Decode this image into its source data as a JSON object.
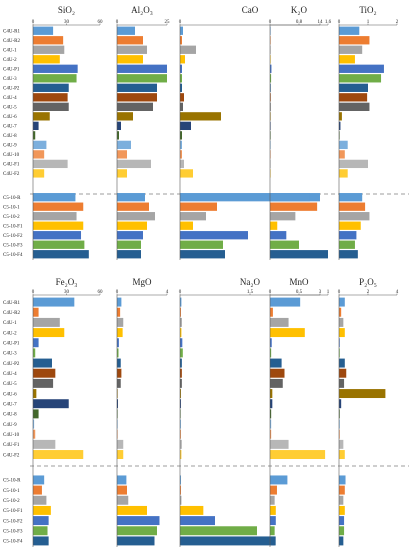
{
  "chart_data": [
    {
      "type": "bar",
      "orientation": "horizontal",
      "title": "SiO₂",
      "xlim": [
        0,
        60
      ],
      "xticks": [
        "0",
        "30",
        "60"
      ],
      "categories": [
        "C4U-R1",
        "C4U-R2",
        "C4U-1",
        "C4U-2",
        "C4U-P1",
        "C4U-3",
        "C4U-P2",
        "C4U-4",
        "C4U-5",
        "C4U-6",
        "C4U-7",
        "C4U-8",
        "C4U-9",
        "C4U-10",
        "C4U-F1",
        "C4U-F2",
        "C5-10-R",
        "C5-10-1",
        "C5-10-2",
        "C5-10-F1",
        "C5-10-F2",
        "C5-10-F3",
        "C5-10-F4"
      ],
      "values": [
        18,
        27,
        28,
        24,
        40,
        39,
        32,
        31,
        32,
        15,
        5,
        2,
        12,
        10,
        31,
        10,
        38,
        45,
        39,
        45,
        43,
        46,
        50
      ]
    },
    {
      "type": "bar",
      "orientation": "horizontal",
      "title": "Al₂O₃",
      "xlim": [
        0,
        25
      ],
      "xticks": [
        "0",
        "25"
      ],
      "categories": [
        "C4U-R1",
        "C4U-R2",
        "C4U-1",
        "C4U-2",
        "C4U-P1",
        "C4U-3",
        "C4U-P2",
        "C4U-4",
        "C4U-5",
        "C4U-6",
        "C4U-7",
        "C4U-8",
        "C4U-9",
        "C4U-10",
        "C4U-F1",
        "C4U-F2",
        "C5-10-R",
        "C5-10-1",
        "C5-10-2",
        "C5-10-F1",
        "C5-10-F2",
        "C5-10-F3",
        "C5-10-F4"
      ],
      "values": [
        9,
        13,
        15,
        13,
        25,
        26,
        20,
        20,
        18,
        8,
        2,
        1,
        7,
        5,
        17,
        5,
        14,
        16,
        19,
        15,
        13,
        12,
        12
      ]
    },
    {
      "type": "bar",
      "orientation": "horizontal",
      "title": "CaO",
      "xlim": [
        0,
        14
      ],
      "xticks": [
        "0",
        "14"
      ],
      "categories": [
        "C4U-R1",
        "C4U-R2",
        "C4U-1",
        "C4U-2",
        "C4U-P1",
        "C4U-3",
        "C4U-P2",
        "C4U-4",
        "C4U-5",
        "C4U-6",
        "C4U-7",
        "C4U-8",
        "C4U-9",
        "C4U-10",
        "C4U-F1",
        "C4U-F2",
        "C5-10-R",
        "C5-10-1",
        "C5-10-2",
        "C5-10-F1",
        "C5-10-F2",
        "C5-10-F3",
        "C5-10-F4"
      ],
      "values": [
        0.3,
        0.2,
        1.6,
        0.5,
        0.2,
        0.2,
        0.2,
        0.4,
        0.3,
        4.1,
        1.1,
        0.2,
        0.2,
        0.2,
        0.4,
        1.3,
        14,
        3.7,
        2.6,
        1.3,
        6.8,
        4.3,
        4.5
      ]
    },
    {
      "type": "bar",
      "orientation": "horizontal",
      "title": "K₂O",
      "xlim": [
        0,
        1.6
      ],
      "xticks": [
        "0",
        "0.8",
        "1.6"
      ],
      "categories": [
        "C4U-R1",
        "C4U-R2",
        "C4U-1",
        "C4U-2",
        "C4U-P1",
        "C4U-3",
        "C4U-P2",
        "C4U-4",
        "C4U-5",
        "C4U-6",
        "C4U-7",
        "C4U-8",
        "C4U-9",
        "C4U-10",
        "C4U-F1",
        "C4U-F2",
        "C5-10-R",
        "C5-10-1",
        "C5-10-2",
        "C5-10-F1",
        "C5-10-F2",
        "C5-10-F3",
        "C5-10-F4"
      ],
      "values": [
        0,
        0,
        0,
        0,
        0.04,
        0.03,
        0.02,
        0.02,
        0.02,
        0.01,
        0,
        0,
        0.01,
        0,
        0,
        0,
        1.1,
        1.3,
        0.7,
        0.2,
        0.45,
        0.8,
        1.6
      ]
    },
    {
      "type": "bar",
      "orientation": "horizontal",
      "title": "TiO₂",
      "xlim": [
        0,
        2
      ],
      "xticks": [
        "0",
        "1",
        "2"
      ],
      "categories": [
        "C4U-R1",
        "C4U-R2",
        "C4U-1",
        "C4U-2",
        "C4U-P1",
        "C4U-3",
        "C4U-P2",
        "C4U-4",
        "C4U-5",
        "C4U-6",
        "C4U-7",
        "C4U-8",
        "C4U-9",
        "C4U-10",
        "C4U-F1",
        "C4U-F2",
        "C5-10-R",
        "C5-10-1",
        "C5-10-2",
        "C5-10-F1",
        "C5-10-F2",
        "C5-10-F3",
        "C5-10-F4"
      ],
      "values": [
        0.7,
        1.05,
        0.8,
        0.55,
        1.55,
        1.45,
        1.0,
        0.97,
        1.05,
        0.1,
        0.05,
        0.02,
        0.3,
        0.2,
        1.0,
        0.3,
        0.8,
        0.9,
        1.05,
        0.75,
        0.6,
        0.55,
        0.65
      ]
    },
    {
      "type": "bar",
      "orientation": "horizontal",
      "title": "Fe₂O₃",
      "xlim": [
        0,
        60
      ],
      "xticks": [
        "0",
        "30",
        "60"
      ],
      "categories": [
        "C4U-R1",
        "C4U-R2",
        "C4U-1",
        "C4U-2",
        "C4U-P1",
        "C4U-3",
        "C4U-P2",
        "C4U-4",
        "C4U-5",
        "C4U-6",
        "C4U-7",
        "C4U-8",
        "C4U-9",
        "C4U-10",
        "C4U-F1",
        "C4U-F2",
        "C5-10-R",
        "C5-10-1",
        "C5-10-2",
        "C5-10-F1",
        "C5-10-F2",
        "C5-10-F3",
        "C5-10-F4"
      ],
      "values": [
        37,
        5,
        24,
        28,
        5,
        2,
        17,
        20,
        18,
        3,
        32,
        5,
        1,
        2,
        20,
        45,
        10,
        8,
        12,
        16,
        14,
        13,
        14
      ]
    },
    {
      "type": "bar",
      "orientation": "horizontal",
      "title": "MgO",
      "xlim": [
        0,
        4
      ],
      "xticks": [
        "0",
        "4"
      ],
      "categories": [
        "C4U-R1",
        "C4U-R2",
        "C4U-1",
        "C4U-2",
        "C4U-P1",
        "C4U-3",
        "C4U-P2",
        "C4U-4",
        "C4U-5",
        "C4U-6",
        "C4U-7",
        "C4U-8",
        "C4U-9",
        "C4U-10",
        "C4U-F1",
        "C4U-F2",
        "C5-10-R",
        "C5-10-1",
        "C5-10-2",
        "C5-10-F1",
        "C5-10-F2",
        "C5-10-F3",
        "C5-10-F4"
      ],
      "values": [
        0.35,
        0.25,
        0.5,
        0.45,
        0.15,
        0.12,
        0.3,
        0.35,
        0.3,
        0.05,
        0.08,
        0.03,
        0.05,
        0.04,
        0.5,
        0.5,
        0.75,
        0.8,
        0.9,
        2.4,
        3.4,
        3.2,
        3.0
      ]
    },
    {
      "type": "bar",
      "orientation": "horizontal",
      "title": "Na₂O",
      "xlim": [
        0,
        3
      ],
      "xticks": [
        "0",
        "1.5",
        "3"
      ],
      "categories": [
        "C4U-R1",
        "C4U-R2",
        "C4U-1",
        "C4U-2",
        "C4U-P1",
        "C4U-3",
        "C4U-P2",
        "C4U-4",
        "C4U-5",
        "C4U-6",
        "C4U-7",
        "C4U-8",
        "C4U-9",
        "C4U-10",
        "C4U-F1",
        "C4U-F2",
        "C5-10-R",
        "C5-10-1",
        "C5-10-2",
        "C5-10-F1",
        "C5-10-F2",
        "C5-10-F3",
        "C5-10-F4"
      ],
      "values": [
        0.03,
        0.02,
        0.04,
        0.03,
        0.05,
        0.06,
        0.04,
        0.04,
        0.04,
        0.02,
        0.02,
        0.01,
        0.02,
        0.02,
        0.04,
        0.03,
        0.02,
        0.02,
        0.03,
        0.5,
        0.75,
        1.65,
        2.05
      ]
    },
    {
      "type": "bar",
      "orientation": "horizontal",
      "title": "MnO",
      "xlim": [
        0,
        1
      ],
      "xticks": [
        "0",
        "0.5",
        "1"
      ],
      "categories": [
        "C4U-R1",
        "C4U-R2",
        "C4U-1",
        "C4U-2",
        "C4U-P1",
        "C4U-3",
        "C4U-P2",
        "C4U-4",
        "C4U-5",
        "C4U-6",
        "C4U-7",
        "C4U-8",
        "C4U-9",
        "C4U-10",
        "C4U-F1",
        "C4U-F2",
        "C5-10-R",
        "C5-10-1",
        "C5-10-2",
        "C5-10-F1",
        "C5-10-F2",
        "C5-10-F3",
        "C5-10-F4"
      ],
      "values": [
        0.52,
        0.05,
        0.32,
        0.6,
        0.03,
        0.02,
        0.2,
        0.25,
        0.22,
        0.04,
        0.04,
        0.02,
        0.02,
        0.02,
        0.32,
        0.95,
        0.3,
        0.12,
        0.08,
        0.1,
        0.1,
        0.08,
        0.08
      ]
    },
    {
      "type": "bar",
      "orientation": "horizontal",
      "title": "P₂O₅",
      "xlim": [
        0,
        4
      ],
      "xticks": [
        "0",
        "2",
        "4"
      ],
      "categories": [
        "C4U-R1",
        "C4U-R2",
        "C4U-1",
        "C4U-2",
        "C4U-P1",
        "C4U-3",
        "C4U-P2",
        "C4U-4",
        "C4U-5",
        "C4U-6",
        "C4U-7",
        "C4U-8",
        "C4U-9",
        "C4U-10",
        "C4U-F1",
        "C4U-F2",
        "C5-10-R",
        "C5-10-1",
        "C5-10-2",
        "C5-10-F1",
        "C5-10-F2",
        "C5-10-F3",
        "C5-10-F4"
      ],
      "values": [
        0.4,
        0.15,
        0.3,
        0.4,
        0.05,
        0.05,
        0.4,
        0.5,
        0.35,
        3.2,
        0.15,
        0.05,
        0.05,
        0.05,
        0.3,
        0.4,
        0.45,
        0.4,
        0.3,
        0.4,
        0.35,
        0.35,
        0.3
      ]
    }
  ],
  "row_labels": [
    "C4U-R1",
    "C4U-R2",
    "C4U-1",
    "C4U-2",
    "C4U-P1",
    "C4U-3",
    "C4U-P2",
    "C4U-4",
    "C4U-5",
    "C4U-6",
    "C4U-7",
    "C4U-8",
    "C4U-9",
    "C4U-10",
    "C4U-F1",
    "C4U-F2",
    "C5-10-R",
    "C5-10-1",
    "C5-10-2",
    "C5-10-F1",
    "C5-10-F2",
    "C5-10-F3",
    "C5-10-F4"
  ],
  "colors": [
    "#5b9bd5",
    "#ed7d31",
    "#a5a5a5",
    "#ffc000",
    "#4472c4",
    "#70ad47",
    "#255e91",
    "#9e480e",
    "#636363",
    "#997300",
    "#264478",
    "#43682b",
    "#7cafdd",
    "#f1975a",
    "#b7b7b7",
    "#ffcd33",
    "#5b9bd5",
    "#ed7d31",
    "#a5a5a5",
    "#ffc000",
    "#4472c4",
    "#70ad47",
    "#255e91"
  ],
  "divider_color": "#7f7f7f"
}
